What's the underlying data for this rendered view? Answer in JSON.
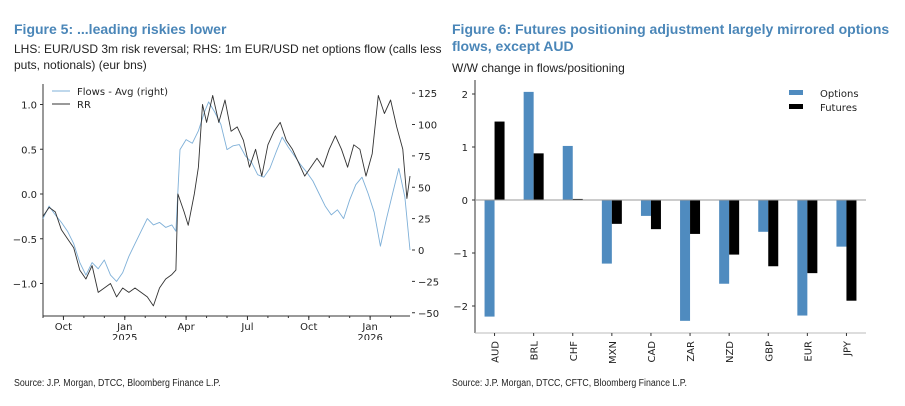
{
  "figure5": {
    "title": "Figure 5: ...leading riskies lower",
    "subtitle": "LHS: EUR/USD 3m risk reversal; RHS: 1m EUR/USD net options flow (calls less puts, notionals) (eur bns)",
    "source": "Source: J.P. Morgan, DTCC, Bloomberg Finance L.P."
  },
  "figure6": {
    "title": "Figure 6: Futures positioning adjustment largely mirrored options flows, except AUD",
    "subtitle": "W/W change in flows/positioning",
    "source": "Source: J.P. Morgan, DTCC, CFTC, Bloomberg Finance L.P."
  },
  "chart_data": [
    {
      "type": "line",
      "title": "Figure 5: ...leading riskies lower",
      "x_range": [
        "2024-09",
        "2026-02"
      ],
      "x_ticks": [
        {
          "label": "Oct",
          "sub": "",
          "t": 1
        },
        {
          "label": "Jan",
          "sub": "2025",
          "t": 4
        },
        {
          "label": "Apr",
          "sub": "",
          "t": 7
        },
        {
          "label": "Jul",
          "sub": "",
          "t": 10
        },
        {
          "label": "Oct",
          "sub": "",
          "t": 13
        },
        {
          "label": "Jan",
          "sub": "2026",
          "t": 16
        }
      ],
      "x_max": 17.95,
      "y_left": {
        "label": "RR",
        "ylim": [
          -1.4,
          1.25
        ],
        "ticks": [
          "1.0",
          "0.5",
          "0.0",
          "-0.5",
          "-1.0"
        ],
        "tick_values": [
          1.0,
          0.5,
          0.0,
          -0.5,
          -1.0
        ]
      },
      "y_right": {
        "label": "Flows - Avg (right)",
        "ylim": [
          -52,
          128
        ],
        "ticks": [
          "125",
          "100",
          "75",
          "50",
          "25",
          "0",
          "−25",
          "−50"
        ],
        "tick_values": [
          125,
          100,
          75,
          50,
          25,
          0,
          -25,
          -50
        ]
      },
      "legend": {
        "position": "top-left",
        "entries": [
          "Flows - Avg (right)",
          "RR"
        ]
      },
      "series": [
        {
          "name": "Flows - Avg (right)",
          "axis": "right",
          "color": "#7fb0d8",
          "points": [
            [
              0,
              25
            ],
            [
              0.3,
              35
            ],
            [
              0.6,
              28
            ],
            [
              0.9,
              22
            ],
            [
              1.2,
              15
            ],
            [
              1.5,
              5
            ],
            [
              1.8,
              -10
            ],
            [
              2.1,
              -20
            ],
            [
              2.4,
              -10
            ],
            [
              2.7,
              -15
            ],
            [
              3.0,
              -8
            ],
            [
              3.3,
              -20
            ],
            [
              3.6,
              -25
            ],
            [
              3.9,
              -18
            ],
            [
              4.2,
              -5
            ],
            [
              4.5,
              5
            ],
            [
              4.8,
              15
            ],
            [
              5.1,
              25
            ],
            [
              5.4,
              20
            ],
            [
              5.7,
              22
            ],
            [
              6.0,
              18
            ],
            [
              6.3,
              20
            ],
            [
              6.5,
              15
            ],
            [
              6.7,
              80
            ],
            [
              7.0,
              88
            ],
            [
              7.3,
              85
            ],
            [
              7.6,
              95
            ],
            [
              7.9,
              110
            ],
            [
              8.1,
              118
            ],
            [
              8.4,
              110
            ],
            [
              8.7,
              100
            ],
            [
              9.0,
              80
            ],
            [
              9.3,
              83
            ],
            [
              9.6,
              84
            ],
            [
              9.9,
              75
            ],
            [
              10.2,
              70
            ],
            [
              10.5,
              60
            ],
            [
              10.8,
              58
            ],
            [
              11.1,
              65
            ],
            [
              11.4,
              78
            ],
            [
              11.7,
              90
            ],
            [
              12.0,
              82
            ],
            [
              12.3,
              75
            ],
            [
              12.6,
              68
            ],
            [
              12.9,
              62
            ],
            [
              13.2,
              55
            ],
            [
              13.5,
              45
            ],
            [
              13.8,
              35
            ],
            [
              14.1,
              28
            ],
            [
              14.4,
              32
            ],
            [
              14.7,
              25
            ],
            [
              15.0,
              40
            ],
            [
              15.3,
              52
            ],
            [
              15.6,
              58
            ],
            [
              15.9,
              45
            ],
            [
              16.2,
              30
            ],
            [
              16.5,
              3
            ],
            [
              16.8,
              25
            ],
            [
              17.1,
              45
            ],
            [
              17.4,
              65
            ],
            [
              17.7,
              42
            ],
            [
              17.95,
              0
            ]
          ]
        },
        {
          "name": "RR",
          "axis": "left",
          "color": "#333333",
          "points": [
            [
              0,
              -0.25
            ],
            [
              0.3,
              -0.15
            ],
            [
              0.6,
              -0.2
            ],
            [
              0.9,
              -0.4
            ],
            [
              1.2,
              -0.5
            ],
            [
              1.5,
              -0.6
            ],
            [
              1.8,
              -0.85
            ],
            [
              2.1,
              -0.95
            ],
            [
              2.4,
              -0.8
            ],
            [
              2.7,
              -1.1
            ],
            [
              3.0,
              -1.05
            ],
            [
              3.3,
              -1.0
            ],
            [
              3.6,
              -1.15
            ],
            [
              3.9,
              -1.05
            ],
            [
              4.2,
              -1.1
            ],
            [
              4.5,
              -1.05
            ],
            [
              4.8,
              -1.1
            ],
            [
              5.1,
              -1.15
            ],
            [
              5.4,
              -1.25
            ],
            [
              5.7,
              -1.05
            ],
            [
              6.0,
              -0.95
            ],
            [
              6.3,
              -0.9
            ],
            [
              6.5,
              -0.85
            ],
            [
              6.6,
              0.0
            ],
            [
              6.9,
              -0.2
            ],
            [
              7.1,
              -0.35
            ],
            [
              7.4,
              0.0
            ],
            [
              7.6,
              0.3
            ],
            [
              7.8,
              1.0
            ],
            [
              8.0,
              0.8
            ],
            [
              8.3,
              1.1
            ],
            [
              8.6,
              0.8
            ],
            [
              8.9,
              1.05
            ],
            [
              9.2,
              0.7
            ],
            [
              9.5,
              0.75
            ],
            [
              9.8,
              0.6
            ],
            [
              10.1,
              0.3
            ],
            [
              10.4,
              0.5
            ],
            [
              10.7,
              0.2
            ],
            [
              11.0,
              0.55
            ],
            [
              11.3,
              0.7
            ],
            [
              11.6,
              0.8
            ],
            [
              11.9,
              0.6
            ],
            [
              12.2,
              0.5
            ],
            [
              12.5,
              0.35
            ],
            [
              12.8,
              0.2
            ],
            [
              13.1,
              0.3
            ],
            [
              13.4,
              0.4
            ],
            [
              13.7,
              0.3
            ],
            [
              14.0,
              0.5
            ],
            [
              14.3,
              0.65
            ],
            [
              14.6,
              0.5
            ],
            [
              14.9,
              0.3
            ],
            [
              15.2,
              0.55
            ],
            [
              15.5,
              0.5
            ],
            [
              15.8,
              0.2
            ],
            [
              16.1,
              0.45
            ],
            [
              16.4,
              1.1
            ],
            [
              16.7,
              0.9
            ],
            [
              17.0,
              1.05
            ],
            [
              17.3,
              0.75
            ],
            [
              17.6,
              0.5
            ],
            [
              17.8,
              -0.05
            ],
            [
              17.95,
              0.2
            ]
          ]
        }
      ]
    },
    {
      "type": "bar",
      "title": "Figure 6: Futures positioning adjustment largely mirrored options flows, except AUD",
      "xlabel": "",
      "ylabel": "",
      "ylim": [
        -2.5,
        2.25
      ],
      "y_ticks": [
        2,
        1,
        0,
        -1,
        -2
      ],
      "y_tick_labels": [
        "2",
        "1",
        "0",
        "−1",
        "−2"
      ],
      "categories": [
        "AUD",
        "BRL",
        "CHF",
        "MXN",
        "CAD",
        "ZAR",
        "NZD",
        "GBP",
        "EUR",
        "JPY"
      ],
      "legend": {
        "position": "top-right"
      },
      "series": [
        {
          "name": "Options",
          "color": "#4f8bbf",
          "values": [
            -2.2,
            2.04,
            1.02,
            -1.2,
            -0.3,
            -2.28,
            -1.58,
            -0.6,
            -2.18,
            -0.88
          ]
        },
        {
          "name": "Futures",
          "color": "#000000",
          "values": [
            1.48,
            0.88,
            0.02,
            -0.45,
            -0.55,
            -0.64,
            -1.03,
            -1.25,
            -1.38,
            -1.9
          ]
        }
      ]
    }
  ]
}
